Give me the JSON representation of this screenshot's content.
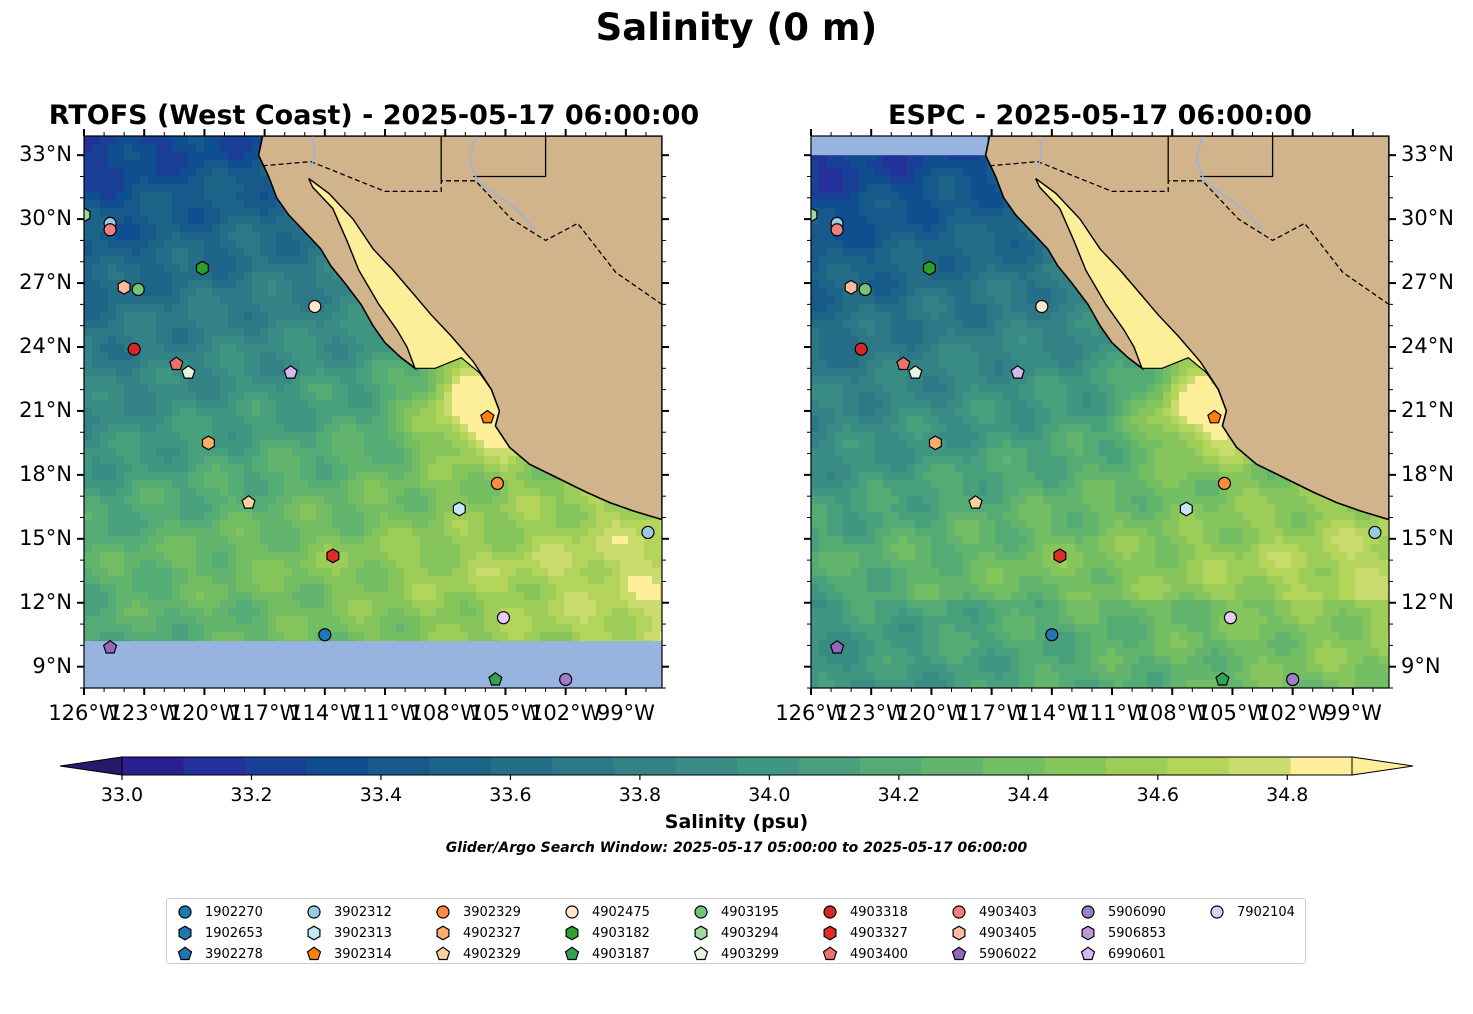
{
  "title": "Salinity (0 m)",
  "panels": [
    {
      "title": "RTOFS (West Coast) - 2025-05-17 06:00:00",
      "id": "rtofs"
    },
    {
      "title": "ESPC - 2025-05-17 06:00:00",
      "id": "espc"
    }
  ],
  "lat_labels": [
    "33°N",
    "30°N",
    "27°N",
    "24°N",
    "21°N",
    "18°N",
    "15°N",
    "12°N",
    "9°N"
  ],
  "lat_values": [
    33,
    30,
    27,
    24,
    21,
    18,
    15,
    12,
    9
  ],
  "lon_labels": [
    "126°W",
    "123°W",
    "120°W",
    "117°W",
    "114°W",
    "111°W",
    "108°W",
    "105°W",
    "102°W",
    "99°W"
  ],
  "lon_values": [
    -126,
    -123,
    -120,
    -117,
    -114,
    -111,
    -108,
    -105,
    -102,
    -99
  ],
  "map_extent": {
    "lon": [
      -126,
      -97.2
    ],
    "lat": [
      8,
      33.9
    ]
  },
  "colorbar": {
    "title": "Salinity (psu)",
    "tick_labels": [
      "33.0",
      "33.2",
      "33.4",
      "33.6",
      "33.8",
      "34.0",
      "34.2",
      "34.4",
      "34.6",
      "34.8"
    ],
    "tick_values": [
      33.0,
      33.2,
      33.4,
      33.6,
      33.8,
      34.0,
      34.2,
      34.4,
      34.6,
      34.8
    ],
    "range": [
      33.0,
      34.9
    ],
    "step": 0.1,
    "extend": "both",
    "colormap": "haline",
    "colors": [
      "#2a186c",
      "#2a1f8f",
      "#23309a",
      "#1a3f96",
      "#0f4f90",
      "#17598a",
      "#1d6489",
      "#256e88",
      "#2d7887",
      "#338286",
      "#398c84",
      "#3f9782",
      "#48a17c",
      "#55ab74",
      "#63b46c",
      "#73bd63",
      "#86c55b",
      "#9ccd58",
      "#b3d55c",
      "#cbdc6e",
      "#fdee99"
    ]
  },
  "search_window": "Glider/Argo Search Window: 2025-05-17 05:00:00 to 2025-05-17 06:00:00",
  "land_color": "#d2b48c",
  "nodata_color": "#97b4e0",
  "floats": [
    {
      "id": "1902270",
      "marker": "circle",
      "color": "#1f77b4"
    },
    {
      "id": "1902653",
      "marker": "hexagon",
      "color": "#1f77b4"
    },
    {
      "id": "3902278",
      "marker": "pentagon",
      "color": "#1f77b4"
    },
    {
      "id": "3902312",
      "marker": "circle",
      "color": "#9ecae1",
      "lat": 29.8,
      "lon": -124.7
    },
    {
      "id": "3902313",
      "marker": "hexagon",
      "color": "#c6e7f7",
      "lat": 16.4,
      "lon": -107.3
    },
    {
      "id": "3902314",
      "marker": "pentagon",
      "color": "#ff7f0e",
      "lat": 20.7,
      "lon": -105.9
    },
    {
      "id": "3902329",
      "marker": "circle",
      "color": "#fd8d3c",
      "lat": 17.6,
      "lon": -105.4
    },
    {
      "id": "4902327",
      "marker": "hexagon",
      "color": "#fdae6b",
      "lat": 19.5,
      "lon": -119.8
    },
    {
      "id": "4902329",
      "marker": "pentagon",
      "color": "#fdd0a2",
      "lat": 16.7,
      "lon": -117.8
    },
    {
      "id": "4902475",
      "marker": "circle",
      "color": "#fee6ce",
      "lat": 25.9,
      "lon": -114.5
    },
    {
      "id": "4903182",
      "marker": "hexagon",
      "color": "#2ca02c",
      "lat": 27.7,
      "lon": -120.1
    },
    {
      "id": "4903187",
      "marker": "pentagon",
      "color": "#31a354",
      "lat": 8.4,
      "lon": -105.5
    },
    {
      "id": "4903195",
      "marker": "circle",
      "color": "#74c476",
      "lat": 26.7,
      "lon": -123.3
    },
    {
      "id": "4903294",
      "marker": "hexagon",
      "color": "#a1d99b",
      "lat": 30.2,
      "lon": -126.0
    },
    {
      "id": "4903299",
      "marker": "pentagon",
      "color": "#e5f5e0",
      "lat": 22.8,
      "lon": -120.8
    },
    {
      "id": "4903318",
      "marker": "circle",
      "color": "#d62728",
      "lat": 23.9,
      "lon": -123.5
    },
    {
      "id": "4903327",
      "marker": "hexagon",
      "color": "#de2d26",
      "lat": 14.2,
      "lon": -113.6
    },
    {
      "id": "4903400",
      "marker": "pentagon",
      "color": "#f07070",
      "lat": 23.2,
      "lon": -121.4
    },
    {
      "id": "4903403",
      "marker": "circle",
      "color": "#f08080",
      "lat": 29.5,
      "lon": -124.7
    },
    {
      "id": "4903405",
      "marker": "hexagon",
      "color": "#fcbba1",
      "lat": 26.8,
      "lon": -124.0
    },
    {
      "id": "5906022",
      "marker": "pentagon",
      "color": "#9467bd",
      "lat": 9.9,
      "lon": -124.7
    },
    {
      "id": "5906090",
      "marker": "circle",
      "color": "#a17dc8",
      "lat": 8.4,
      "lon": -102.0
    },
    {
      "id": "5906853",
      "marker": "hexagon",
      "color": "#bc9ad6"
    },
    {
      "id": "6990601",
      "marker": "pentagon",
      "color": "#d4b9f0",
      "lat": 22.8,
      "lon": -115.7
    },
    {
      "id": "7902104",
      "marker": "circle",
      "color": "#e7cdf8",
      "lat": 11.3,
      "lon": -105.1
    },
    {
      "id": "unlabeled-1",
      "marker": "circle",
      "color": "#9ecae1",
      "lat": 15.3,
      "lon": -97.9,
      "legend": false
    },
    {
      "id": "unlabeled-2",
      "marker": "circle",
      "color": "#1f77b4",
      "lat": 10.5,
      "lon": -114.0,
      "legend": false
    }
  ]
}
